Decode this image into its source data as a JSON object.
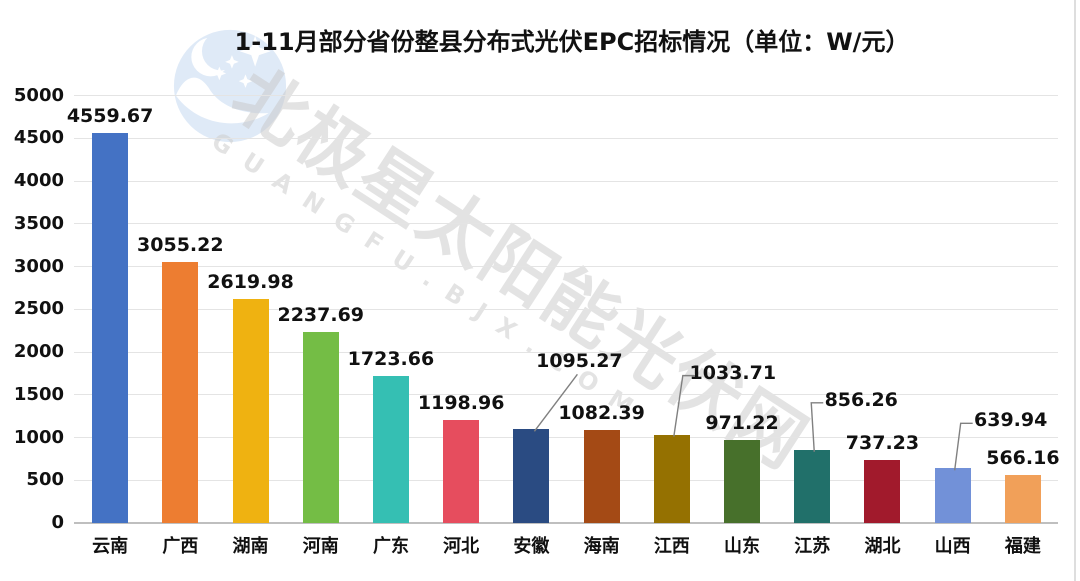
{
  "watermark": {
    "logo_icon": "polaris-bjx-logo",
    "text_cn": "北极星太阳能光伏网",
    "text_en": "GUANGFU.BJX.COM"
  },
  "chart_data": {
    "type": "bar",
    "title": "1-11月部分省份整县分布式光伏EPC招标情况（单位：W/元）",
    "categories": [
      "云南",
      "广西",
      "湖南",
      "河南",
      "广东",
      "河北",
      "安徽",
      "海南",
      "江西",
      "山东",
      "江苏",
      "湖北",
      "山西",
      "福建"
    ],
    "values": [
      4559.67,
      3055.22,
      2619.98,
      2237.69,
      1723.66,
      1198.96,
      1095.27,
      1082.39,
      1033.71,
      971.22,
      856.26,
      737.23,
      639.94,
      566.16
    ],
    "bar_colors": [
      "#4472C4",
      "#ED7D31",
      "#EFB211",
      "#74BD45",
      "#35BFB3",
      "#E64D5E",
      "#2A4B82",
      "#A44A15",
      "#957101",
      "#47702B",
      "#21706A",
      "#A11A2C",
      "#7291D8",
      "#F1A059"
    ],
    "xlabel": "",
    "ylabel": "",
    "ylim": [
      0,
      5000
    ],
    "yticks": [
      0,
      500,
      1000,
      1500,
      2000,
      2500,
      3000,
      3500,
      4000,
      4500,
      5000
    ],
    "grid": true,
    "legend_position": "none",
    "value_label_decimals": 2,
    "callouts": [
      {
        "category": "安徽",
        "dx": 48,
        "lift": 57,
        "anchor": "bottom"
      },
      {
        "category": "江西",
        "dx": 61,
        "lift": 51,
        "anchor": "left"
      },
      {
        "category": "江苏",
        "dx": 49,
        "lift": 39,
        "anchor": "left"
      },
      {
        "category": "山西",
        "dx": 58,
        "lift": 37,
        "anchor": "left"
      }
    ],
    "colors": {
      "grid": "#e4e4e4",
      "axis_line": "#bfbfbf",
      "text": "#111111",
      "leader_line": "#808080",
      "watermark_text": "#c8c8c8"
    }
  }
}
